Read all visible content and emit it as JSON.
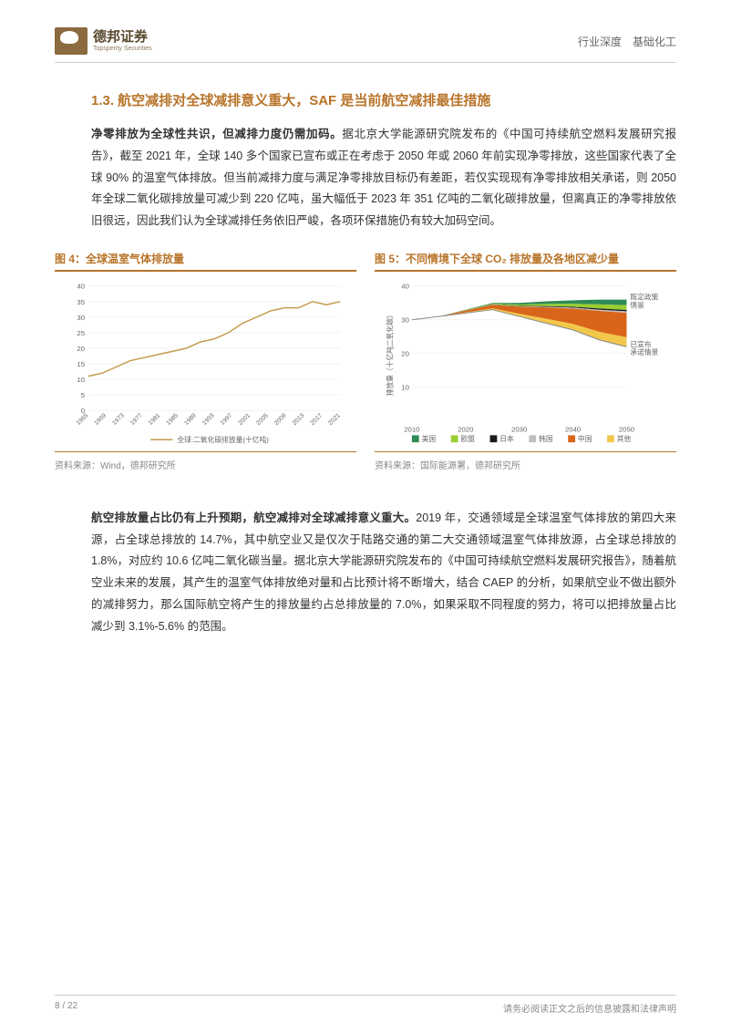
{
  "header": {
    "logo_cn": "德邦证券",
    "logo_en": "Topsperity Securities",
    "right_text": "行业深度　基础化工"
  },
  "section": {
    "title": "1.3. 航空减排对全球减排意义重大，SAF 是当前航空减排最佳措施"
  },
  "para1": {
    "lead": "净零排放为全球性共识，但减排力度仍需加码。",
    "rest": "据北京大学能源研究院发布的《中国可持续航空燃料发展研究报告》，截至 2021 年，全球 140 多个国家已宣布或正在考虑于 2050 年或 2060 年前实现净零排放，这些国家代表了全球 90% 的温室气体排放。但当前减排力度与满足净零排放目标仍有差距，若仅实现现有净零排放相关承诺，则 2050 年全球二氧化碳排放量可减少到 220 亿吨，虽大幅低于 2023 年 351 亿吨的二氧化碳排放量，但离真正的净零排放依旧很远，因此我们认为全球减排任务依旧严峻，各项环保措施仍有较大加码空间。"
  },
  "fig4": {
    "title": "图 4：全球温室气体排放量",
    "type": "line",
    "legend": "全球:二氧化碳排放量(十亿吨)",
    "source": "资料来源：Wind，德邦研究所",
    "line_color": "#c49a4a",
    "grid_color": "#e5e5e5",
    "y_ticks": [
      0,
      5,
      10,
      15,
      20,
      25,
      30,
      35,
      40
    ],
    "x_labels": [
      "1965",
      "1969",
      "1973",
      "1977",
      "1981",
      "1985",
      "1989",
      "1993",
      "1997",
      "2001",
      "2005",
      "2009",
      "2013",
      "2017",
      "2021"
    ],
    "y_values": [
      11,
      12,
      14,
      16,
      17,
      18,
      19,
      20,
      22,
      23,
      25,
      28,
      30,
      32,
      33,
      33,
      35,
      34,
      35
    ]
  },
  "fig5": {
    "title": "图 5：不同情境下全球 CO₂ 排放量及各地区减少量",
    "type": "area",
    "source": "资料来源：国际能源署，德邦研究所",
    "y_label": "排放量（十亿吨二氧化碳）",
    "y_ticks": [
      10,
      20,
      30,
      40
    ],
    "x_ticks": [
      2010,
      2020,
      2030,
      2040,
      2050
    ],
    "legend_items": [
      {
        "label": "美国",
        "color": "#2e8b57"
      },
      {
        "label": "欧盟",
        "color": "#9acd32"
      },
      {
        "label": "日本",
        "color": "#1a1a1a"
      },
      {
        "label": "韩国",
        "color": "#bfbfbf"
      },
      {
        "label": "中国",
        "color": "#d9651a"
      },
      {
        "label": "其他",
        "color": "#f2c84b"
      }
    ],
    "annot_top": "既定政策情景",
    "annot_top_color": "#3a8a5f",
    "annot_bottom": "已宣布承诺情景",
    "annot_bottom_color": "#d9a53a",
    "baseline_color": "#888888"
  },
  "para2": {
    "lead": "航空排放量占比仍有上升预期，航空减排对全球减排意义重大。",
    "rest": "2019 年，交通领域是全球温室气体排放的第四大来源，占全球总排放的 14.7%，其中航空业又是仅次于陆路交通的第二大交通领域温室气体排放源，占全球总排放的 1.8%，对应约 10.6 亿吨二氧化碳当量。据北京大学能源研究院发布的《中国可持续航空燃料发展研究报告》，随着航空业未来的发展，其产生的温室气体排放绝对量和占比预计将不断增大，结合 CAEP 的分析，如果航空业不做出额外的减排努力，那么国际航空将产生的排放量约占总排放量的 7.0%，如果采取不同程度的努力，将可以把排放量占比减少到 3.1%-5.6% 的范围。"
  },
  "footer": {
    "page": "8 / 22",
    "disclaimer": "请务必阅读正文之后的信息披露和法律声明"
  }
}
